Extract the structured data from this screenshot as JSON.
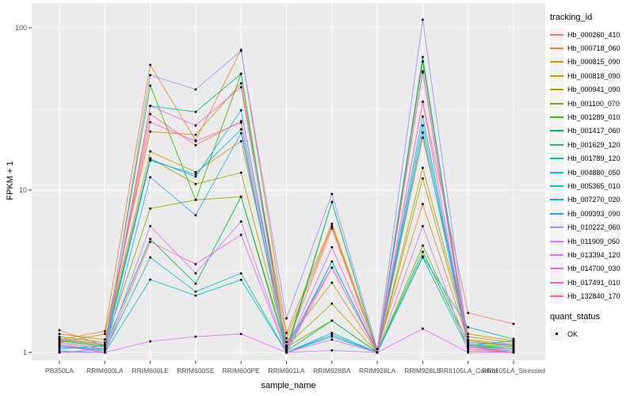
{
  "chart_data": {
    "type": "line",
    "title": "",
    "xlabel": "sample_name",
    "ylabel": "FPKM + 1",
    "log_y": true,
    "ylim": [
      0.89,
      142
    ],
    "yticks": [
      1,
      10,
      100
    ],
    "ytick_labels": [
      "1",
      "10",
      "100"
    ],
    "minor_yticks": [
      3.162,
      31.62
    ],
    "grid": true,
    "legend_position": "right",
    "panel_bg": "#EBEBEB",
    "grid_color": "#FFFFFF",
    "tick_label_color": "#4D4D4D",
    "point_shape": "square",
    "point_color": "#000000",
    "categories": [
      "PB350LA",
      "RRIM600LA",
      "RRIM600LE",
      "RRIM600SE",
      "RRIM600PE",
      "RRIM901LA",
      "RRIM928BA",
      "RRIM928LA",
      "RRIM928LE",
      "RRII105LA_Control",
      "RRII105LA_Stressed"
    ],
    "series": [
      {
        "name": "Hb_000260_410",
        "color": "#F8766D",
        "values": [
          1.37,
          1.1,
          29.4,
          18.9,
          26.6,
          1.1,
          5.8,
          1.0,
          35,
          1.75,
          1.5
        ]
      },
      {
        "name": "Hb_000718_060",
        "color": "#EA8331",
        "values": [
          1.2,
          1.35,
          59,
          20.2,
          73,
          1.32,
          6.2,
          1.05,
          8.2,
          1.18,
          1.1
        ]
      },
      {
        "name": "Hb_000815_090",
        "color": "#D89000",
        "values": [
          1.15,
          1.3,
          22.9,
          21.9,
          45.5,
          1.22,
          6.0,
          1.0,
          21,
          1.3,
          1.18
        ]
      },
      {
        "name": "Hb_000818_090",
        "color": "#C09B00",
        "values": [
          1.3,
          1.2,
          17.3,
          12.9,
          20,
          1.16,
          2.69,
          1.0,
          13.7,
          1.25,
          1.15
        ]
      },
      {
        "name": "Hb_000941_090",
        "color": "#A3A500",
        "values": [
          1.25,
          1.15,
          15.7,
          10.9,
          12.8,
          1.1,
          2.0,
          1.0,
          11.8,
          1.2,
          1.12
        ]
      },
      {
        "name": "Hb_001100_070",
        "color": "#7CAE00",
        "values": [
          1.22,
          1.12,
          7.7,
          8.7,
          9.1,
          1.08,
          1.57,
          1.0,
          4.55,
          1.15,
          1.1
        ]
      },
      {
        "name": "Hb_001289_010",
        "color": "#39B600",
        "values": [
          1.2,
          1.1,
          44,
          8.7,
          52,
          1.05,
          8.45,
          1.0,
          62,
          1.12,
          1.08
        ]
      },
      {
        "name": "Hb_001417_060",
        "color": "#00BB4E",
        "values": [
          1.18,
          1.08,
          5.0,
          2.65,
          9.1,
          1.02,
          1.57,
          1.0,
          4.17,
          1.1,
          1.05
        ]
      },
      {
        "name": "Hb_001629_120",
        "color": "#00BF7D",
        "values": [
          1.15,
          1.05,
          33,
          30.3,
          52,
          1.0,
          8.45,
          1.0,
          66,
          1.08,
          1.02
        ]
      },
      {
        "name": "Hb_001789_120",
        "color": "#00C1A3",
        "values": [
          1.12,
          1.02,
          3.85,
          2.37,
          3.07,
          1.0,
          1.32,
          1.0,
          3.85,
          1.05,
          1.0
        ]
      },
      {
        "name": "Hb_004880_050",
        "color": "#00BFC4",
        "values": [
          1.1,
          1.0,
          2.81,
          2.24,
          2.8,
          1.0,
          1.25,
          1.0,
          3.9,
          1.43,
          1.21
        ]
      },
      {
        "name": "Hb_005365_010",
        "color": "#00BAE0",
        "values": [
          1.08,
          1.05,
          15.2,
          12.5,
          23.7,
          1.0,
          3.63,
          1.0,
          25,
          1.12,
          1.05
        ]
      },
      {
        "name": "Hb_007270_020",
        "color": "#00B0F6",
        "values": [
          1.05,
          1.1,
          15.5,
          12.1,
          31,
          1.05,
          3.63,
          1.0,
          28.4,
          1.1,
          1.18
        ]
      },
      {
        "name": "Hb_009393_090",
        "color": "#35A2FF",
        "values": [
          1.02,
          1.0,
          12.0,
          7.0,
          22.4,
          1.0,
          1.28,
          1.0,
          22.6,
          1.08,
          1.0
        ]
      },
      {
        "name": "Hb_010222_060",
        "color": "#9590FF",
        "values": [
          1.0,
          1.05,
          51,
          41.7,
          72,
          1.62,
          9.46,
          1.05,
          112,
          1.15,
          1.12
        ]
      },
      {
        "name": "Hb_011909_050",
        "color": "#C77CFF",
        "values": [
          1.1,
          1.0,
          6.0,
          3.07,
          6.4,
          1.0,
          1.03,
          1.0,
          6.0,
          1.02,
          1.0
        ]
      },
      {
        "name": "Hb_013394_120",
        "color": "#E76BF3",
        "values": [
          1.0,
          1.0,
          1.17,
          1.25,
          1.3,
          1.0,
          1.2,
          1.0,
          1.4,
          1.0,
          1.0
        ]
      },
      {
        "name": "Hb_014700_030",
        "color": "#FA62DB",
        "values": [
          1.15,
          1.05,
          33,
          25,
          43,
          1.05,
          4.45,
          1.0,
          54,
          1.1,
          1.02
        ]
      },
      {
        "name": "Hb_017491_010",
        "color": "#FF61CC",
        "values": [
          1.12,
          1.0,
          4.8,
          3.5,
          5.3,
          1.0,
          3.33,
          1.0,
          53,
          1.05,
          1.0
        ]
      },
      {
        "name": "Hb_132840_170",
        "color": "#FF65AE",
        "values": [
          1.22,
          1.12,
          26.2,
          20,
          26,
          1.1,
          3.33,
          1.0,
          35,
          1.08,
          1.0
        ]
      }
    ]
  },
  "legend": {
    "tracking_title": "tracking_id",
    "quant_title": "quant_status",
    "quant_ok_label": "OK"
  }
}
